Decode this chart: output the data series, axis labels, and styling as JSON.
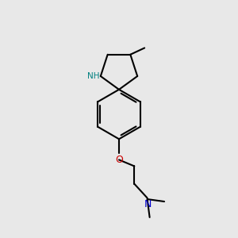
{
  "bg_color": "#e8e8e8",
  "bond_color": "#000000",
  "n_color": "#0000cc",
  "o_color": "#cc0000",
  "nh_color": "#008080",
  "line_width": 1.5,
  "figsize": [
    3.0,
    3.0
  ],
  "dpi": 100,
  "xlim": [
    0,
    10
  ],
  "ylim": [
    0,
    10
  ]
}
